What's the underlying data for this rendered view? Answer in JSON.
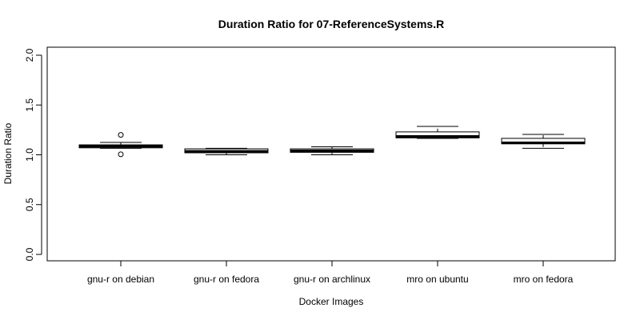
{
  "chart_data": {
    "type": "box",
    "title": "Duration Ratio for 07-ReferenceSystems.R",
    "xlabel": "Docker Images",
    "ylabel": "Duration Ratio",
    "ylim": [
      0.0,
      2.0
    ],
    "yticks": [
      "0.0",
      "0.5",
      "1.0",
      "1.5",
      "2.0"
    ],
    "grid": false,
    "categories": [
      "gnu-r on debian",
      "gnu-r on fedora",
      "gnu-r on archlinux",
      "mro on ubuntu",
      "mro on fedora"
    ],
    "boxes": [
      {
        "category": "gnu-r on debian",
        "whisker_low": 1.065,
        "q1": 1.07,
        "median": 1.085,
        "q3": 1.1,
        "whisker_high": 1.125,
        "outliers": [
          1.2,
          1.005
        ]
      },
      {
        "category": "gnu-r on fedora",
        "whisker_low": 1.0,
        "q1": 1.02,
        "median": 1.035,
        "q3": 1.06,
        "whisker_high": 1.065,
        "outliers": []
      },
      {
        "category": "gnu-r on archlinux",
        "whisker_low": 1.0,
        "q1": 1.025,
        "median": 1.04,
        "q3": 1.06,
        "whisker_high": 1.08,
        "outliers": []
      },
      {
        "category": "mro on ubuntu",
        "whisker_low": 1.165,
        "q1": 1.17,
        "median": 1.185,
        "q3": 1.23,
        "whisker_high": 1.285,
        "outliers": []
      },
      {
        "category": "mro on fedora",
        "whisker_low": 1.065,
        "q1": 1.11,
        "median": 1.12,
        "q3": 1.165,
        "whisker_high": 1.205,
        "outliers": []
      }
    ]
  }
}
